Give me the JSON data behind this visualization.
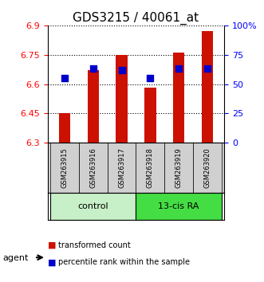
{
  "title": "GDS3215 / 40061_at",
  "samples": [
    "GSM263915",
    "GSM263916",
    "GSM263917",
    "GSM263918",
    "GSM263919",
    "GSM263920"
  ],
  "groups": [
    "control",
    "control",
    "control",
    "13-cis RA",
    "13-cis RA",
    "13-cis RA"
  ],
  "bar_values": [
    6.45,
    6.67,
    6.75,
    6.58,
    6.76,
    6.87
  ],
  "blue_dot_values": [
    6.63,
    6.68,
    6.67,
    6.63,
    6.68,
    6.68
  ],
  "y_min": 6.3,
  "y_max": 6.9,
  "y_ticks_left": [
    6.3,
    6.45,
    6.6,
    6.75,
    6.9
  ],
  "y_ticks_right": [
    0,
    25,
    50,
    75,
    100
  ],
  "bar_color": "#cc1100",
  "dot_color": "#0000cc",
  "bar_base": 6.3,
  "control_color": "#c8f0c8",
  "ra_color": "#44dd44",
  "label_control": "control",
  "label_ra": "13-cis RA",
  "legend_bar": "transformed count",
  "legend_dot": "percentile rank within the sample",
  "bar_width": 0.4,
  "dot_size": 30,
  "grid_color": "black",
  "grid_linestyle": "dotted"
}
